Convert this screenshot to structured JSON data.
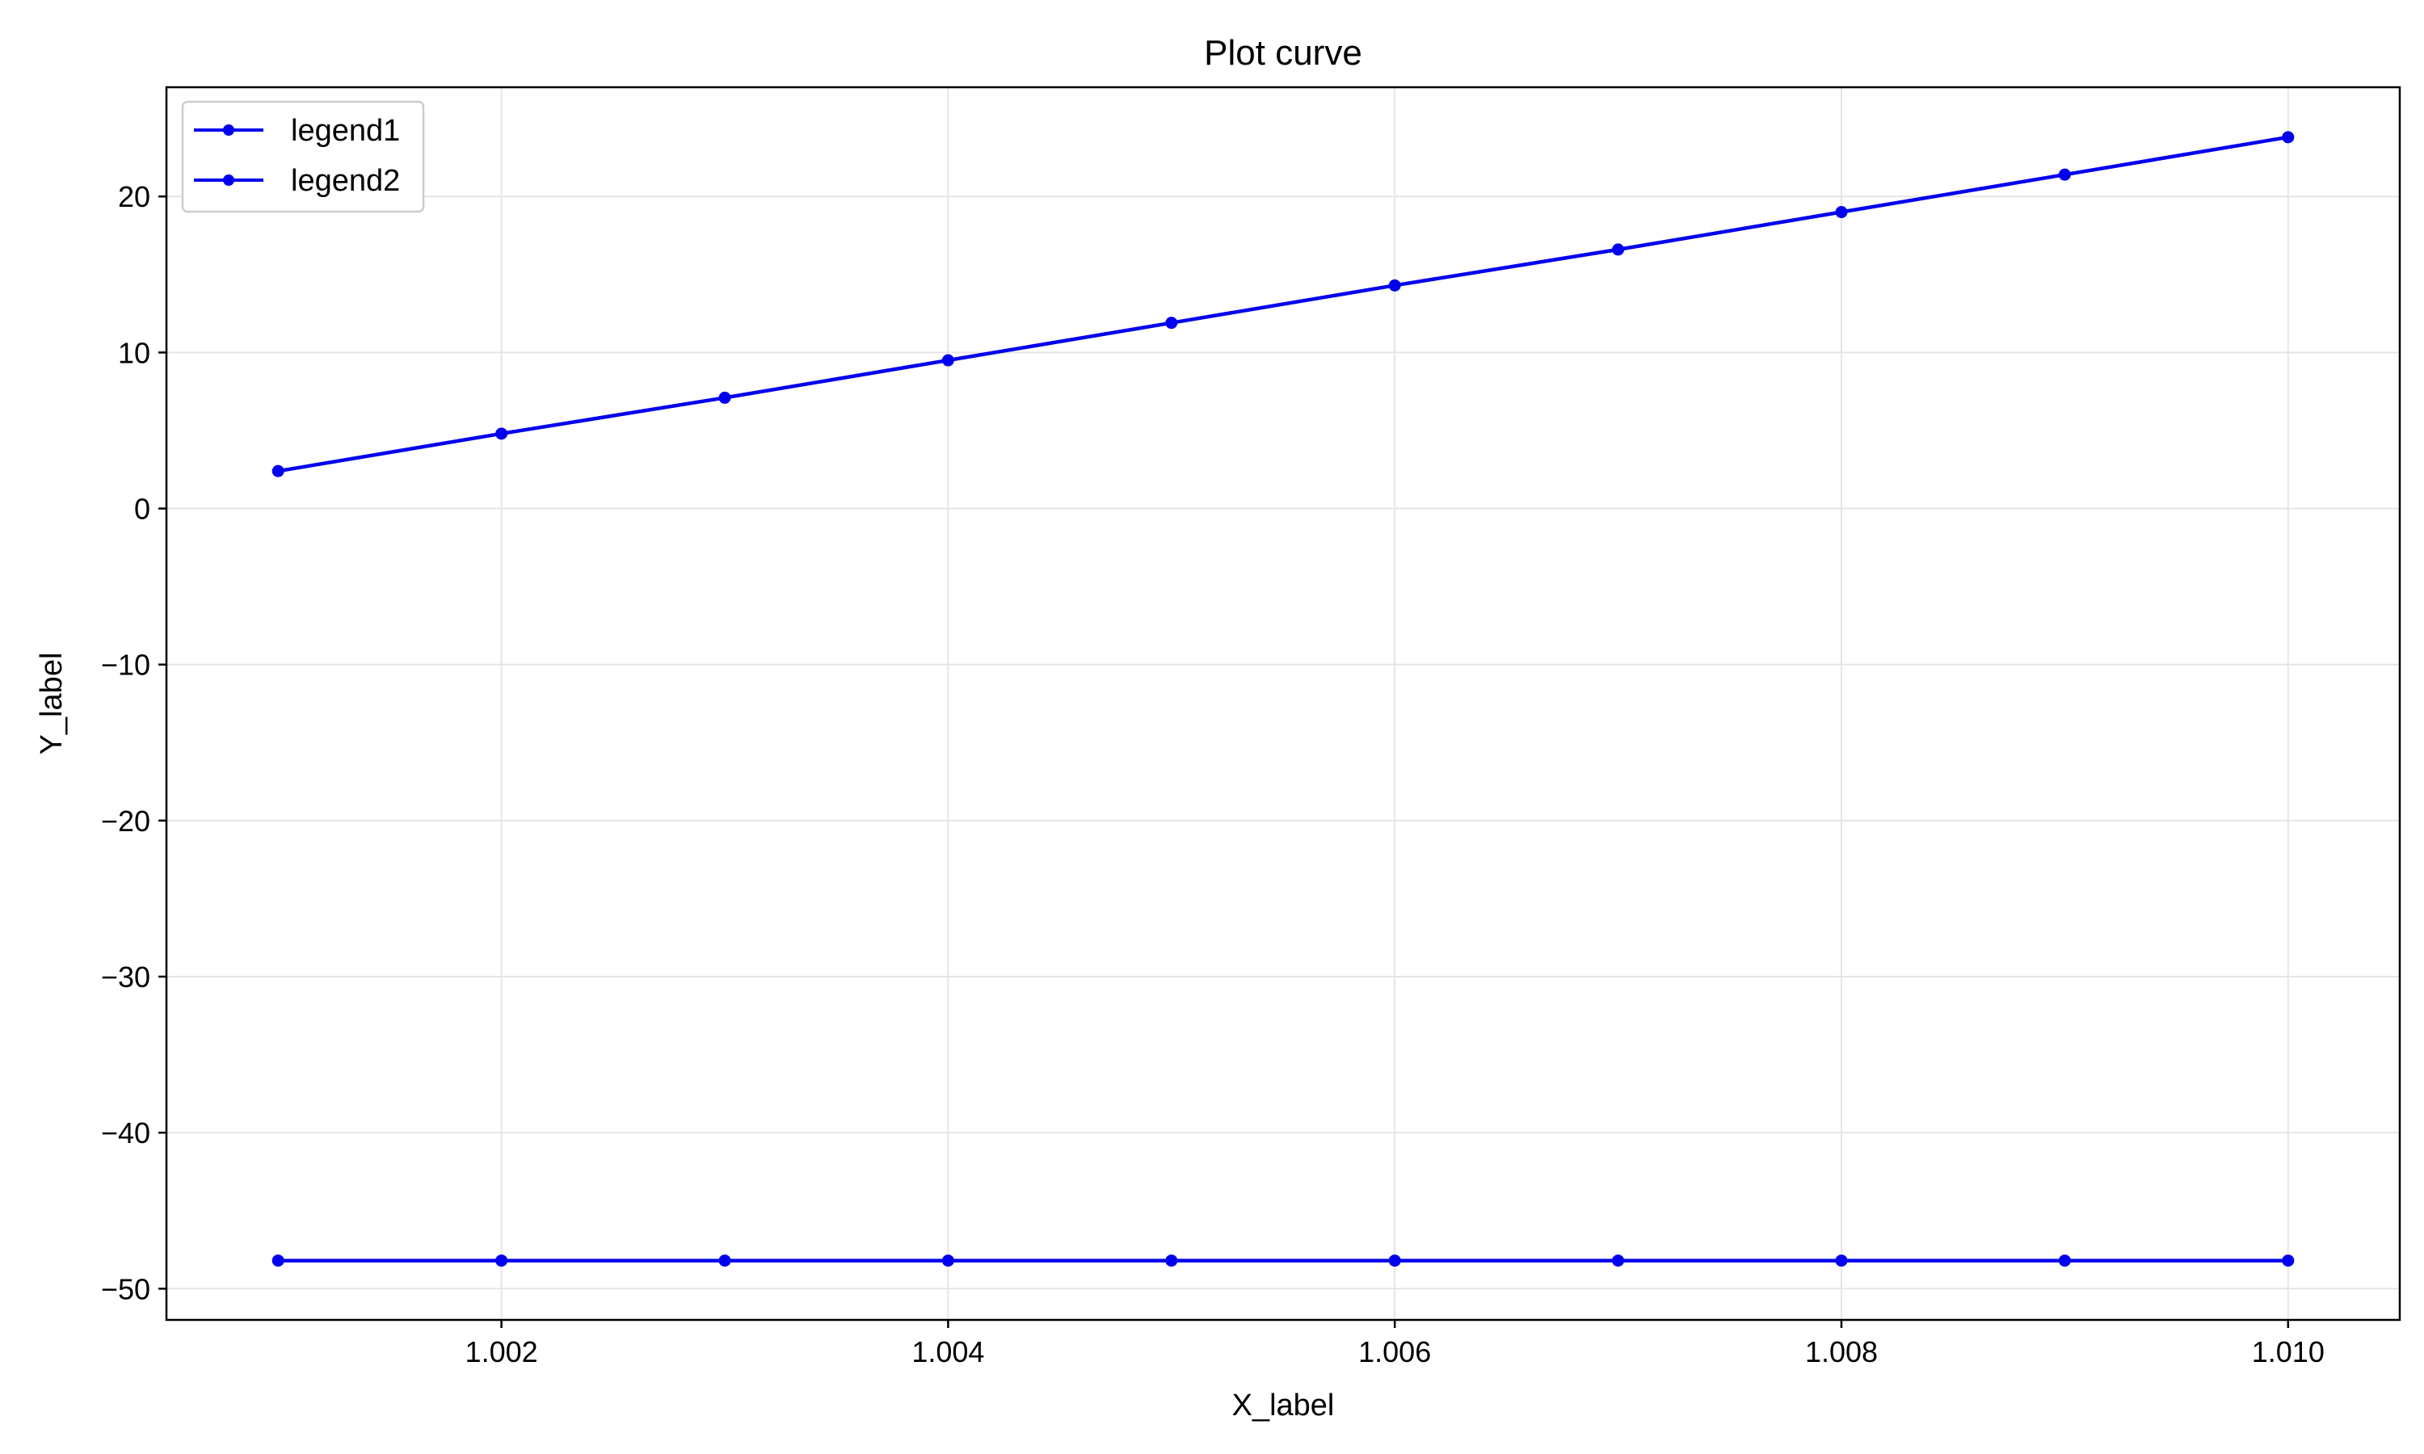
{
  "chart_data": {
    "type": "line",
    "title": "Plot curve",
    "xlabel": "X_label",
    "ylabel": "Y_label",
    "x": [
      1.001,
      1.002,
      1.003,
      1.004,
      1.005,
      1.006,
      1.007,
      1.008,
      1.009,
      1.01
    ],
    "xlim": [
      1.0005,
      1.0105
    ],
    "ylim": [
      -52,
      27
    ],
    "x_ticks": [
      1.002,
      1.004,
      1.006,
      1.008,
      1.01
    ],
    "x_tick_labels": [
      "1.002",
      "1.004",
      "1.006",
      "1.008",
      "1.010"
    ],
    "y_ticks": [
      -50,
      -40,
      -30,
      -20,
      -10,
      0,
      10,
      20
    ],
    "y_tick_labels": [
      "−50",
      "−40",
      "−30",
      "−20",
      "−10",
      "0",
      "10",
      "20"
    ],
    "grid": true,
    "legend_position": "top-left",
    "series": [
      {
        "name": "legend1",
        "color": "#0000ee",
        "marker": "circle",
        "values": [
          2.4,
          4.8,
          7.1,
          9.5,
          11.9,
          14.3,
          16.6,
          19.0,
          21.4,
          23.8
        ]
      },
      {
        "name": "legend2",
        "color": "#0000ee",
        "marker": "circle",
        "values": [
          -48.2,
          -48.2,
          -48.2,
          -48.2,
          -48.2,
          -48.2,
          -48.2,
          -48.2,
          -48.2,
          -48.2
        ]
      }
    ]
  }
}
